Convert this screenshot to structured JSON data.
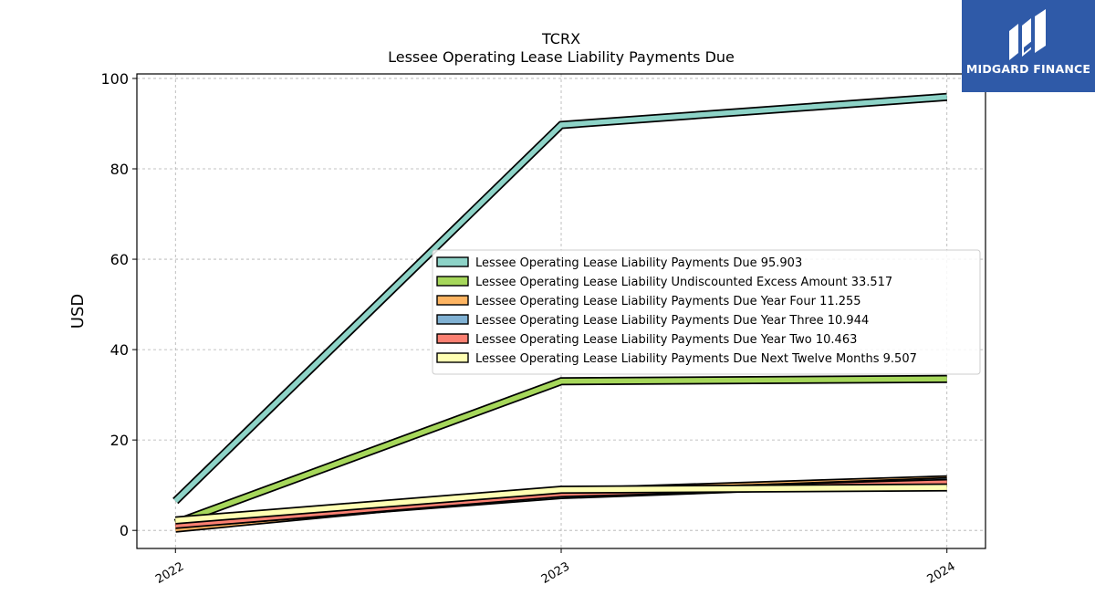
{
  "brand": {
    "name": "MIDGARD FINANCE",
    "logo_icon": "midgard-m-logo-icon",
    "background_color": "#2f5aa8"
  },
  "chart_data": {
    "type": "line",
    "title": "TCRX",
    "subtitle": "Lessee Operating Lease Liability Payments Due",
    "xlabel": "",
    "ylabel": "USD",
    "x": [
      "2022",
      "2023",
      "2024"
    ],
    "xlim": [
      2021.9,
      2024.1
    ],
    "ylim": [
      -4,
      101
    ],
    "yticks": [
      0,
      20,
      40,
      60,
      80,
      100
    ],
    "grid": true,
    "legend_position": "center-right",
    "series": [
      {
        "name": "Lessee Operating Lease Liability Payments Due",
        "legend_value": "95.903",
        "values": [
          6.5,
          89.7,
          95.9
        ],
        "color": "#8dd3c7"
      },
      {
        "name": "Lessee Operating Lease Liability Undiscounted Excess Amount",
        "legend_value": "33.517",
        "values": [
          1.6,
          33.0,
          33.5
        ],
        "color": "#a6d75b"
      },
      {
        "name": "Lessee Operating Lease Liability Payments Due Year Four",
        "legend_value": "11.255",
        "values": [
          0.4,
          8.6,
          11.3
        ],
        "color": "#fdb462"
      },
      {
        "name": "Lessee Operating Lease Liability Payments Due Year Three",
        "legend_value": "10.944",
        "values": [
          1.3,
          7.8,
          10.9
        ],
        "color": "#80b1d3"
      },
      {
        "name": "Lessee Operating Lease Liability Payments Due Year Two",
        "legend_value": "10.463",
        "values": [
          1.2,
          8.2,
          10.5
        ],
        "color": "#fb8072"
      },
      {
        "name": "Lessee Operating Lease Liability Payments Due Next Twelve Months",
        "legend_value": "9.507",
        "values": [
          2.2,
          9.0,
          9.5
        ],
        "color": "#ffffb3"
      }
    ]
  }
}
